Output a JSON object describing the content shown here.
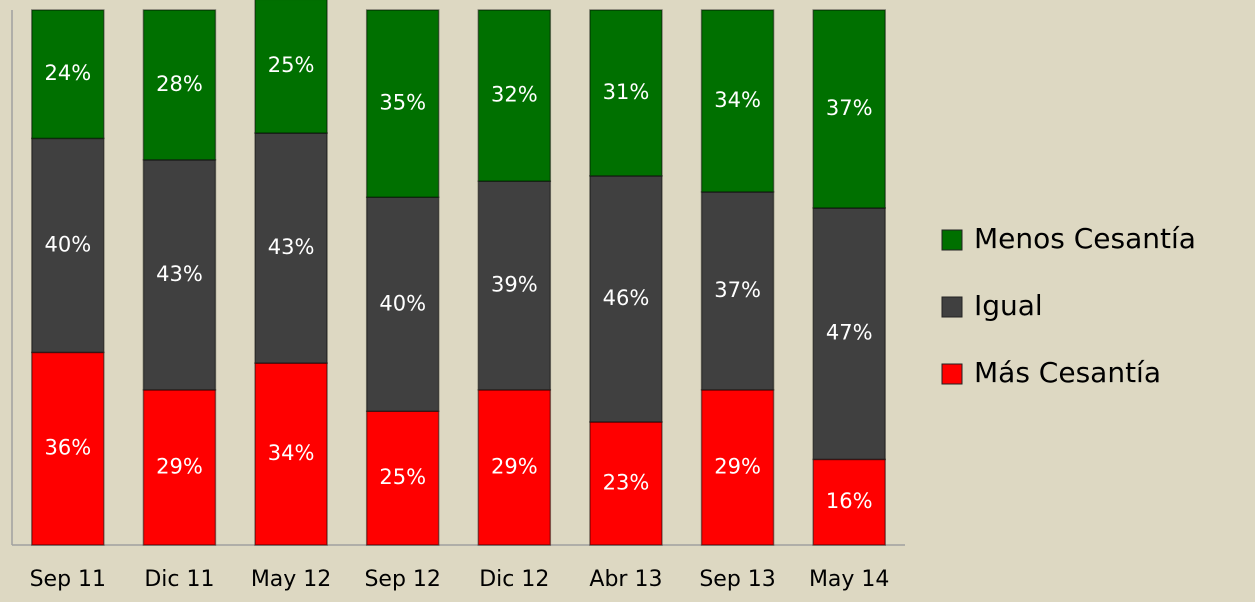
{
  "chart_data": {
    "type": "stacked_bar",
    "categories": [
      "Sep 11",
      "Dic 11",
      "May 12",
      "Sep 12",
      "Dic 12",
      "Abr 13",
      "Sep 13",
      "May 14"
    ],
    "series": [
      {
        "name": "Más Cesantía",
        "color": "#ff0000",
        "values": [
          36,
          29,
          34,
          25,
          29,
          23,
          29,
          16
        ],
        "value_labels": [
          "36%",
          "29%",
          "34%",
          "25%",
          "29%",
          "23%",
          "29%",
          "16%"
        ]
      },
      {
        "name": "Igual",
        "color": "#404040",
        "values": [
          40,
          43,
          43,
          40,
          39,
          46,
          37,
          47
        ],
        "value_labels": [
          "40%",
          "43%",
          "43%",
          "40%",
          "39%",
          "46%",
          "37%",
          "47%"
        ]
      },
      {
        "name": "Menos Cesantía",
        "color": "#007000",
        "values": [
          24,
          28,
          25,
          35,
          32,
          31,
          34,
          37
        ],
        "value_labels": [
          "24%",
          "28%",
          "25%",
          "35%",
          "32%",
          "31%",
          "34%",
          "37%"
        ]
      }
    ],
    "ylim": [
      0,
      100
    ],
    "legend": "right"
  }
}
